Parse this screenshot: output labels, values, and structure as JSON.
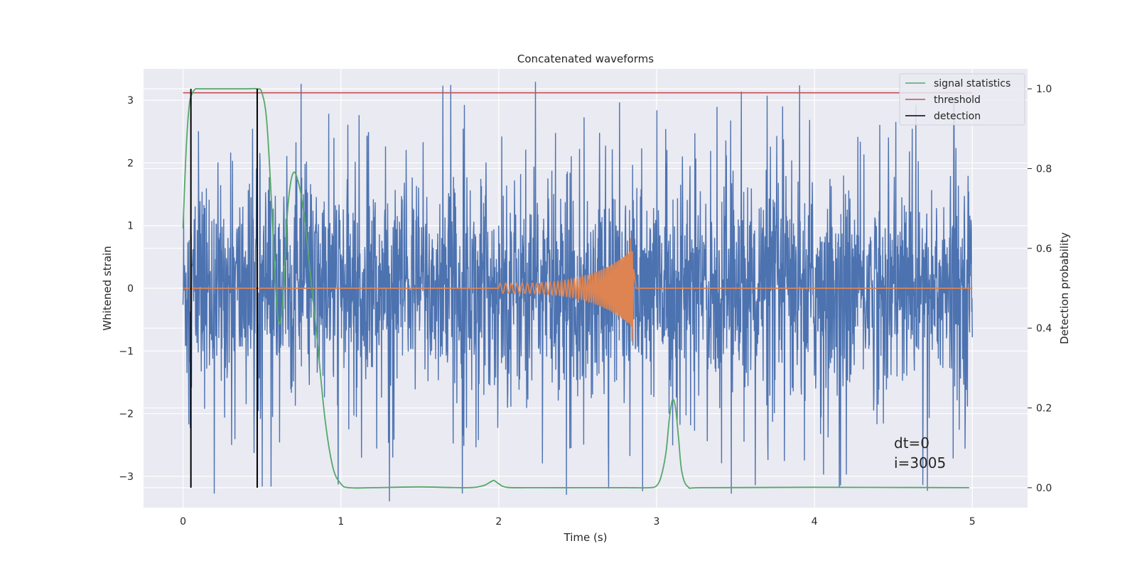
{
  "chart_data": {
    "type": "line",
    "title": "Concatenated waveforms",
    "xlabel": "Time (s)",
    "ylabel": "Whitened strain",
    "ylabel_right": "Detection probability",
    "xlim": [
      -0.25,
      5.35
    ],
    "ylim": [
      -3.5,
      3.5
    ],
    "ylim_right": [
      -0.05,
      1.05
    ],
    "xticks": [
      0,
      1,
      2,
      3,
      4,
      5
    ],
    "yticks": [
      -3,
      -2,
      -1,
      0,
      1,
      2,
      3
    ],
    "yticks_right": [
      0.0,
      0.2,
      0.4,
      0.6,
      0.8,
      1.0
    ],
    "xtick_labels": [
      "0",
      "1",
      "2",
      "3",
      "4",
      "5"
    ],
    "ytick_labels": [
      "−3",
      "−2",
      "−1",
      "0",
      "1",
      "2",
      "3"
    ],
    "ytick_right_labels": [
      "0.0",
      "0.2",
      "0.4",
      "0.6",
      "0.8",
      "1.0"
    ],
    "grid": true,
    "legend_position": "top-right",
    "series": [
      {
        "name": "noise",
        "axis": "left",
        "color": "#4c72b0",
        "x_range": [
          0,
          5
        ],
        "typical_amplitude": 1.2,
        "peak_amplitude": 3.4
      },
      {
        "name": "chirp",
        "axis": "left",
        "color": "#dd8452",
        "x_start": 2.0,
        "x_end": 2.85,
        "peak_amplitude": 0.8
      },
      {
        "name": "signal statistics",
        "axis": "right",
        "color": "#55a868",
        "x": [
          0.0,
          0.02,
          0.04,
          0.06,
          0.08,
          0.1,
          0.2,
          0.3,
          0.4,
          0.47,
          0.5,
          0.53,
          0.56,
          0.58,
          0.6,
          0.62,
          0.64,
          0.66,
          0.68,
          0.7,
          0.72,
          0.75,
          0.78,
          0.8,
          0.85,
          0.9,
          0.95,
          1.0,
          1.05,
          1.2,
          1.5,
          1.8,
          1.9,
          1.95,
          1.97,
          2.0,
          2.05,
          2.2,
          2.5,
          2.8,
          2.95,
          3.0,
          3.03,
          3.06,
          3.08,
          3.1,
          3.12,
          3.14,
          3.16,
          3.2,
          3.3,
          4.0,
          4.98
        ],
        "y": [
          0.65,
          0.85,
          0.96,
          0.99,
          1.0,
          1.0,
          1.0,
          1.0,
          1.0,
          1.0,
          0.99,
          0.92,
          0.72,
          0.55,
          0.43,
          0.42,
          0.52,
          0.68,
          0.76,
          0.79,
          0.78,
          0.73,
          0.64,
          0.56,
          0.37,
          0.17,
          0.05,
          0.01,
          0.0,
          0.0,
          0.002,
          0.0,
          0.005,
          0.015,
          0.018,
          0.01,
          0.001,
          0.0,
          0.0,
          0.0,
          0.0,
          0.005,
          0.03,
          0.09,
          0.17,
          0.22,
          0.2,
          0.12,
          0.04,
          0.002,
          0.0,
          0.001,
          0.0
        ]
      },
      {
        "name": "threshold",
        "axis": "right",
        "color": "#c44e52",
        "x": [
          0,
          5
        ],
        "y": [
          0.99,
          0.99
        ]
      },
      {
        "name": "detection",
        "axis": "right",
        "color": "#000000",
        "x_positions": [
          0.05,
          0.47
        ],
        "y_range": [
          0.0,
          1.0
        ]
      }
    ],
    "legend": [
      "signal statistics",
      "threshold",
      "detection"
    ],
    "annotations": [
      "dt=0",
      "i=3005"
    ]
  }
}
